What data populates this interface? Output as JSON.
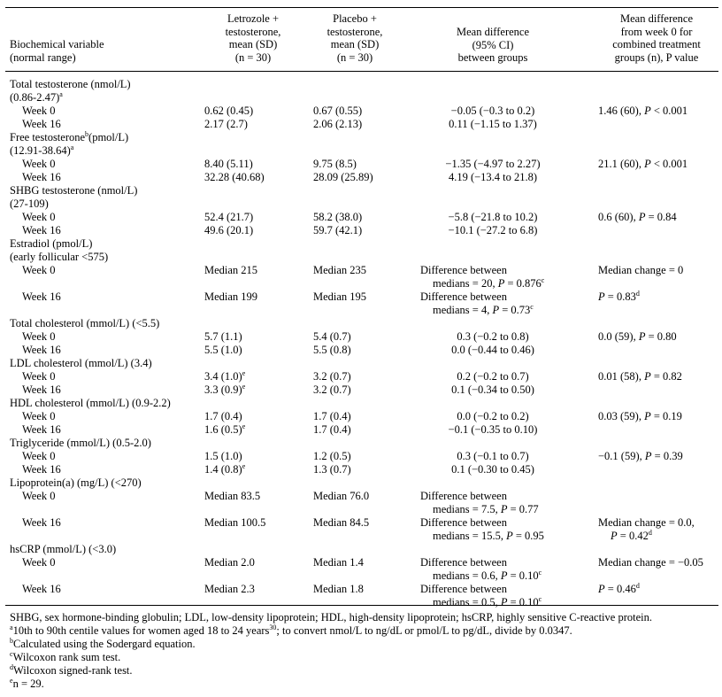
{
  "header": {
    "col0": [
      "Biochemical variable",
      "(normal range)"
    ],
    "col1": [
      "Letrozole +",
      "testosterone,",
      "mean (SD)",
      "(n = 30)"
    ],
    "col2": [
      "Placebo +",
      "testosterone,",
      "mean (SD)",
      "(n = 30)"
    ],
    "col3": [
      "Mean difference",
      "(95% CI)",
      "between groups"
    ],
    "col4": [
      "Mean difference",
      "from week 0 for",
      "combined treatment",
      "groups (n), P value"
    ]
  },
  "rows": [
    {
      "type": "head",
      "label": "Total testosterone (nmol/L)"
    },
    {
      "type": "head",
      "label": "(0.86-2.47)",
      "sup": "a"
    },
    {
      "type": "data",
      "label": "Week 0",
      "c1": "0.62 (0.45)",
      "c2": "0.67 (0.55)",
      "c3": "−0.05 (−0.3 to 0.2)",
      "c4": "1.46 (60), P < 0.001"
    },
    {
      "type": "data",
      "label": "Week 16",
      "c1": "2.17 (2.7)",
      "c2": "2.06 (2.13)",
      "c3": "0.11 (−1.15 to 1.37)",
      "c4": ""
    },
    {
      "type": "head",
      "label": "Free testosterone",
      "sup": "b",
      "label2": "(pmol/L)"
    },
    {
      "type": "head",
      "label": "(12.91-38.64)",
      "sup": "a"
    },
    {
      "type": "data",
      "label": "Week 0",
      "c1": "8.40 (5.11)",
      "c2": "9.75 (8.5)",
      "c3": "−1.35 (−4.97 to 2.27)",
      "c4": "21.1 (60), P < 0.001"
    },
    {
      "type": "data",
      "label": "Week 16",
      "c1": "32.28 (40.68)",
      "c2": "28.09 (25.89)",
      "c3": "4.19 (−13.4 to 21.8)",
      "c4": ""
    },
    {
      "type": "head",
      "label": "SHBG testosterone (nmol/L)"
    },
    {
      "type": "head",
      "label": "(27-109)"
    },
    {
      "type": "data",
      "label": "Week 0",
      "c1": "52.4 (21.7)",
      "c2": "58.2 (38.0)",
      "c3": "−5.8 (−21.8 to 10.2)",
      "c4": "0.6 (60), P = 0.84"
    },
    {
      "type": "data",
      "label": "Week 16",
      "c1": "49.6 (20.1)",
      "c2": "59.7 (42.1)",
      "c3": "−10.1 (−27.2 to 6.8)",
      "c4": ""
    },
    {
      "type": "head",
      "label": "Estradiol (pmol/L)"
    },
    {
      "type": "head",
      "label": "(early follicular <575)"
    },
    {
      "type": "two",
      "label": "Week 0",
      "c1": "Median 215",
      "c2": "Median 235",
      "c3a": "Difference between",
      "c3b": "medians = 20, P = 0.876",
      "c3sup": "c",
      "c4": "Median change = 0",
      "c4sup": ""
    },
    {
      "type": "two",
      "label": "Week 16",
      "c1": "Median 199",
      "c2": "Median 195",
      "c3a": "Difference between",
      "c3b": "medians = 4, P = 0.73",
      "c3sup": "c",
      "c4": "P = 0.83",
      "c4sup": "d"
    },
    {
      "type": "head",
      "label": "Total cholesterol (mmol/L) (<5.5)"
    },
    {
      "type": "data",
      "label": "Week 0",
      "c1": "5.7 (1.1)",
      "c2": "5.4 (0.7)",
      "c3": "0.3 (−0.2 to 0.8)",
      "c4": "0.0 (59), P = 0.80"
    },
    {
      "type": "data",
      "label": "Week 16",
      "c1": "5.5 (1.0)",
      "c2": "5.5 (0.8)",
      "c3": "0.0 (−0.44 to 0.46)",
      "c4": ""
    },
    {
      "type": "head",
      "label": "LDL cholesterol (mmol/L) (3.4)"
    },
    {
      "type": "data",
      "label": "Week 0",
      "c1": "3.4 (1.0)",
      "c1sup": "e",
      "c2": "3.2 (0.7)",
      "c3": "0.2 (−0.2 to 0.7)",
      "c4": "0.01 (58), P = 0.82"
    },
    {
      "type": "data",
      "label": "Week 16",
      "c1": "3.3 (0.9)",
      "c1sup": "e",
      "c2": "3.2 (0.7)",
      "c3": "0.1 (−0.34 to 0.50)",
      "c4": ""
    },
    {
      "type": "head",
      "label": "HDL cholesterol (mmol/L) (0.9-2.2)"
    },
    {
      "type": "data",
      "label": "Week 0",
      "c1": "1.7 (0.4)",
      "c2": "1.7 (0.4)",
      "c3": "0.0 (−0.2 to 0.2)",
      "c4": "0.03 (59), P = 0.19"
    },
    {
      "type": "data",
      "label": "Week 16",
      "c1": "1.6 (0.5)",
      "c1sup": "e",
      "c2": "1.7 (0.4)",
      "c3": "−0.1 (−0.35 to 0.10)",
      "c4": ""
    },
    {
      "type": "head",
      "label": "Triglyceride (mmol/L) (0.5-2.0)"
    },
    {
      "type": "data",
      "label": "Week 0",
      "c1": "1.5 (1.0)",
      "c2": "1.2 (0.5)",
      "c3": "0.3 (−0.1 to 0.7)",
      "c4": "−0.1 (59), P = 0.39"
    },
    {
      "type": "data",
      "label": "Week 16",
      "c1": "1.4 (0.8)",
      "c1sup": "e",
      "c2": "1.3 (0.7)",
      "c3": "0.1 (−0.30 to 0.45)",
      "c4": ""
    },
    {
      "type": "head",
      "label": "Lipoprotein(a) (mg/L) (<270)"
    },
    {
      "type": "two",
      "label": "Week 0",
      "c1": "Median 83.5",
      "c2": "Median 76.0",
      "c3a": "Difference between",
      "c3b": "medians = 7.5, P = 0.77",
      "c3sup": "",
      "c4": "",
      "c4sup": ""
    },
    {
      "type": "two",
      "label": "Week 16",
      "c1": "Median 100.5",
      "c2": "Median 84.5",
      "c3a": "Difference between",
      "c3b": "medians = 15.5, P = 0.95",
      "c3sup": "",
      "c4": "Median change = 0.0,",
      "c4b": "P = 0.42",
      "c4sup": "d"
    },
    {
      "type": "head",
      "label": "hsCRP (mmol/L) (<3.0)"
    },
    {
      "type": "two",
      "label": "Week 0",
      "c1": "Median 2.0",
      "c2": "Median 1.4",
      "c3a": "Difference between",
      "c3b": "medians = 0.6, P = 0.10",
      "c3sup": "c",
      "c4": "Median change = −0.05",
      "c4sup": ""
    },
    {
      "type": "two",
      "label": "Week 16",
      "c1": "Median 2.3",
      "c2": "Median 1.8",
      "c3a": "Difference between",
      "c3b": "medians = 0.5, P = 0.10",
      "c3sup": "c",
      "c4": "P = 0.46",
      "c4sup": "d"
    }
  ],
  "footnotes": {
    "abbrev": "SHBG, sex hormone-binding globulin; LDL, low-density lipoprotein; HDL, high-density lipoprotein; hsCRP, highly sensitive C-reactive protein.",
    "a_text": "10th to 90th centile values for women aged 18 to 24 years",
    "a_ref": "30",
    "a_tail": "; to convert nmol/L to ng/dL or pmol/L to pg/dL, divide by 0.0347.",
    "b": "Calculated using the Sodergard equation.",
    "c": "Wilcoxon rank sum test.",
    "d": "Wilcoxon signed-rank test.",
    "e": "n = 29."
  }
}
